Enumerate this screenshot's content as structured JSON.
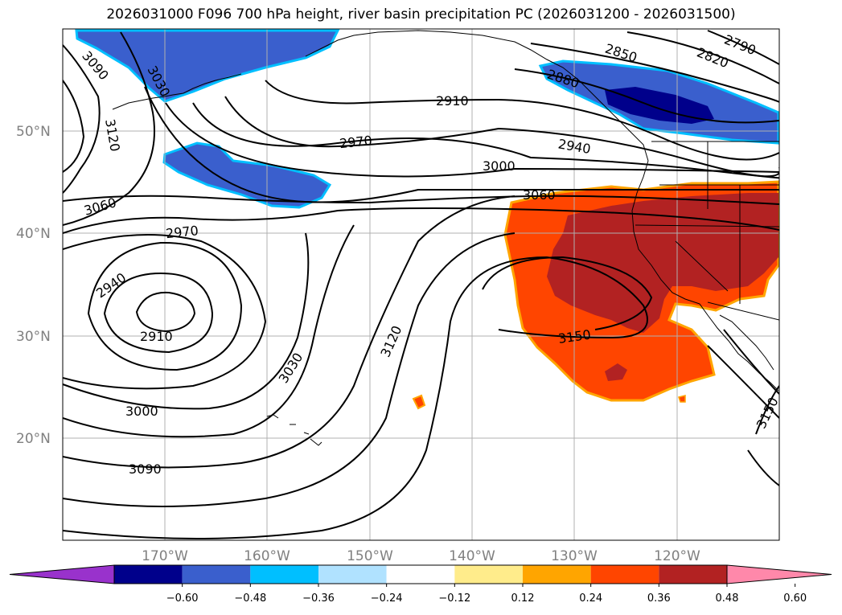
{
  "title": "2026031000 F096 700 hPa height, river basin precipitation PC (2026031200 - 2026031500)",
  "latitude_labels": [
    "50°N",
    "40°N",
    "30°N",
    "20°N"
  ],
  "longitude_labels": [
    "170°W",
    "160°W",
    "150°W",
    "140°W",
    "130°W",
    "120°W"
  ],
  "contour_labels": [
    {
      "name": "2790",
      "text": "2790"
    },
    {
      "name": "2820",
      "text": "2820"
    },
    {
      "name": "2850",
      "text": "2850"
    },
    {
      "name": "2880",
      "text": "2880"
    },
    {
      "name": "2910-north",
      "text": "2910"
    },
    {
      "name": "2910-low",
      "text": "2910"
    },
    {
      "name": "2940-coast",
      "text": "2940"
    },
    {
      "name": "2940-low",
      "text": "2940"
    },
    {
      "name": "2970-mid",
      "text": "2970"
    },
    {
      "name": "2970-low",
      "text": "2970"
    },
    {
      "name": "3000-mid",
      "text": "3000"
    },
    {
      "name": "3000-south",
      "text": "3000"
    },
    {
      "name": "3030-north",
      "text": "3030"
    },
    {
      "name": "3030-south",
      "text": "3030"
    },
    {
      "name": "3060-east",
      "text": "3060"
    },
    {
      "name": "3060-west",
      "text": "3060"
    },
    {
      "name": "3090-north",
      "text": "3090"
    },
    {
      "name": "3090-south",
      "text": "3090"
    },
    {
      "name": "3120-west",
      "text": "3120"
    },
    {
      "name": "3120-mid",
      "text": "3120"
    },
    {
      "name": "3150-east",
      "text": "3150"
    },
    {
      "name": "3150-southeast",
      "text": "3150"
    }
  ],
  "colorbar": {
    "colors": [
      "#9932cc",
      "#00008b",
      "#3a5fcd",
      "#00bfff",
      "#b0e2ff",
      "#ffffff",
      "#ffec8b",
      "#ffa500",
      "#ff4500",
      "#b22222",
      "#ff88aa"
    ],
    "ticks": [
      "−0.60",
      "−0.48",
      "−0.36",
      "−0.24",
      "−0.12",
      "0.12",
      "0.24",
      "0.36",
      "0.48",
      "0.60"
    ]
  }
}
